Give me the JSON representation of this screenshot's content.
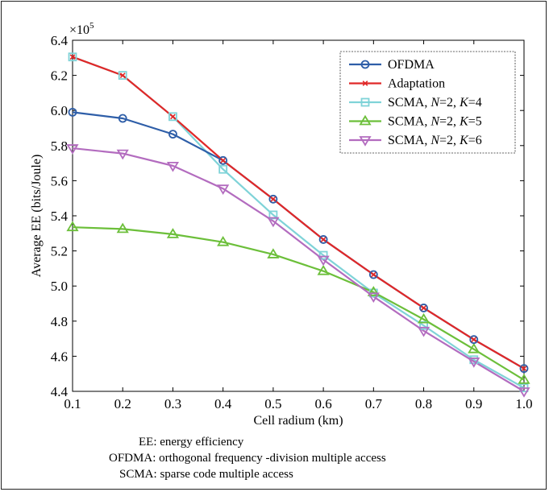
{
  "chart_data": {
    "type": "line",
    "xlabel": "Cell radium (km)",
    "ylabel": "Average EE (bits/Joule)",
    "y_multiplier": "×10",
    "y_multiplier_exp": "5",
    "xlim": [
      0.1,
      1.0
    ],
    "ylim": [
      4.4,
      6.4
    ],
    "x_ticks": [
      "0.1",
      "0.2",
      "0.3",
      "0.4",
      "0.5",
      "0.6",
      "0.7",
      "0.8",
      "0.9",
      "1.0"
    ],
    "y_ticks": [
      "4.4",
      "4.6",
      "4.8",
      "5.0",
      "5.2",
      "5.4",
      "5.6",
      "5.8",
      "6.0",
      "6.2",
      "6.4"
    ],
    "grid": false,
    "legend_position": "top-right",
    "series": [
      {
        "name": "SCMA, N=2, K=4",
        "color": "#7fd3d8",
        "marker": "square",
        "x": [
          0.1,
          0.2,
          0.3,
          0.4,
          0.5,
          0.6,
          0.7,
          0.8,
          0.9,
          1.0
        ],
        "y": [
          6.305,
          6.2,
          5.965,
          5.665,
          5.405,
          5.175,
          4.96,
          4.775,
          4.58,
          4.42
        ]
      },
      {
        "name": "SCMA, N=2, K=5",
        "color": "#6cbf3a",
        "marker": "triangle-up",
        "x": [
          0.1,
          0.2,
          0.3,
          0.4,
          0.5,
          0.6,
          0.7,
          0.8,
          0.9,
          1.0
        ],
        "y": [
          5.335,
          5.325,
          5.295,
          5.25,
          5.18,
          5.085,
          4.965,
          4.81,
          4.64,
          4.465
        ]
      },
      {
        "name": "SCMA, N=2, K=6",
        "color": "#b36cbf",
        "marker": "triangle-down",
        "x": [
          0.1,
          0.2,
          0.3,
          0.4,
          0.5,
          0.6,
          0.7,
          0.8,
          0.9,
          1.0
        ],
        "y": [
          5.785,
          5.755,
          5.685,
          5.555,
          5.37,
          5.15,
          4.94,
          4.745,
          4.57,
          4.4
        ]
      },
      {
        "name": "OFDMA",
        "color": "#2e5ea8",
        "marker": "circle",
        "x": [
          0.1,
          0.2,
          0.3,
          0.4,
          0.5,
          0.6,
          0.7,
          0.8,
          0.9,
          1.0
        ],
        "y": [
          5.99,
          5.955,
          5.865,
          5.715,
          5.495,
          5.265,
          5.065,
          4.875,
          4.695,
          4.53
        ]
      },
      {
        "name": "Adaptation",
        "color": "#e02828",
        "marker": "x",
        "x": [
          0.1,
          0.2,
          0.3,
          0.4,
          0.5,
          0.6,
          0.7,
          0.8,
          0.9,
          1.0
        ],
        "y": [
          6.305,
          6.2,
          5.965,
          5.715,
          5.495,
          5.265,
          5.065,
          4.875,
          4.695,
          4.53
        ]
      }
    ],
    "legend": [
      {
        "label": "OFDMA",
        "series": "OFDMA"
      },
      {
        "label": "Adaptation",
        "series": "Adaptation"
      },
      {
        "label": "SCMA, N=2, K=4",
        "series": "SCMA, N=2, K=4"
      },
      {
        "label": "SCMA, N=2, K=5",
        "series": "SCMA, N=2, K=5"
      },
      {
        "label": "SCMA, N=2, K=6",
        "series": "SCMA, N=2, K=6"
      }
    ]
  },
  "notes": [
    {
      "abbr": "EE",
      "text": ": energy efficiency"
    },
    {
      "abbr": "OFDMA",
      "text": ": orthogonal frequency -division multiple access"
    },
    {
      "abbr": "SCMA",
      "text": ": sparse code multiple access"
    }
  ]
}
